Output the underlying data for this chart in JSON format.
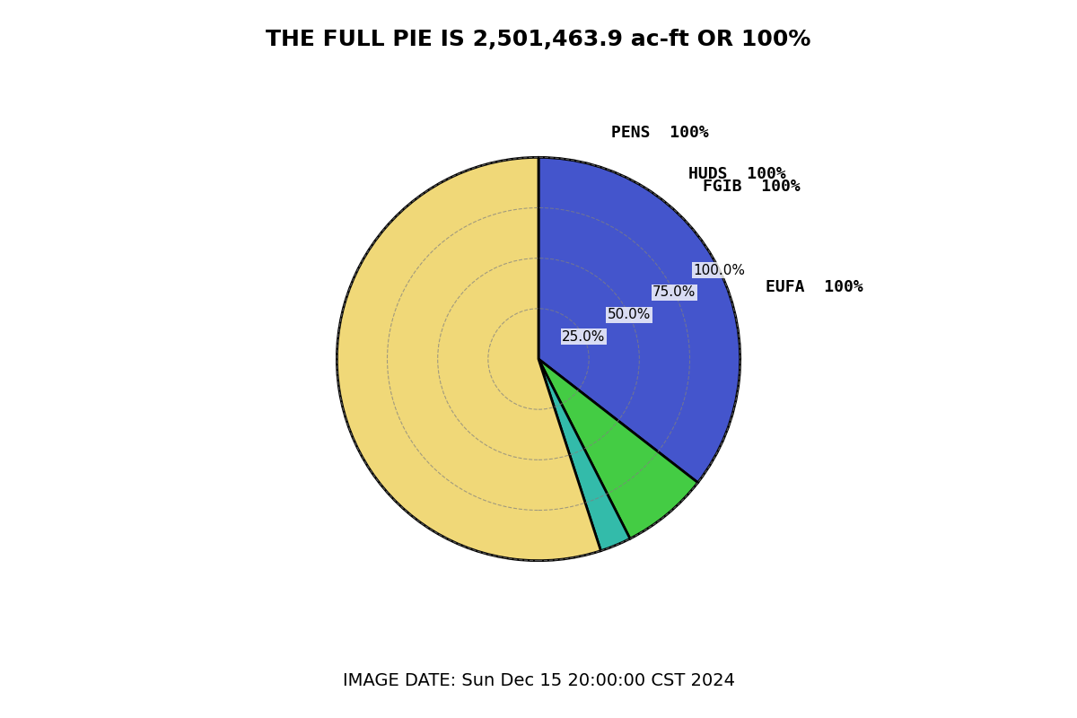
{
  "title": "THE FULL PIE IS 2,501,463.9 ac-ft OR 100%",
  "footer": "IMAGE DATE: Sun Dec 15 20:00:00 CST 2024",
  "slices": [
    {
      "label": "PENS",
      "pct": 100,
      "value_pct": 35.5,
      "color": "#4455cc"
    },
    {
      "label": "HUDS",
      "pct": 100,
      "value_pct": 7.0,
      "color": "#44cc44"
    },
    {
      "label": "FGIB",
      "pct": 100,
      "value_pct": 2.5,
      "color": "#33bbaa"
    },
    {
      "label": "EUFA",
      "pct": 100,
      "value_pct": 55.0,
      "color": "#f0d878"
    }
  ],
  "grid_circles": [
    25.0,
    50.0,
    75.0,
    100.0
  ],
  "start_angle": 90,
  "background_color": "#ffffff",
  "title_fontsize": 18,
  "label_fontsize": 13,
  "grid_label_fontsize": 11
}
